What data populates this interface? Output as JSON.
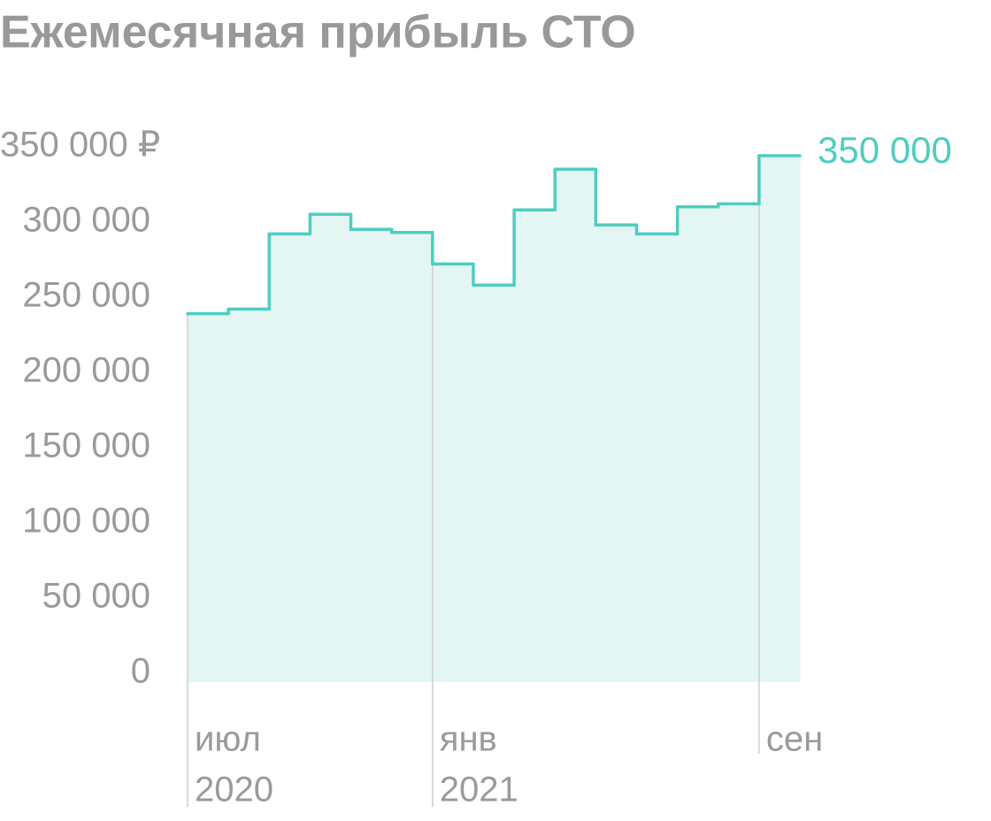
{
  "chart_data": {
    "type": "step",
    "title": "Ежемесячная прибыль СТО",
    "categories": [
      "июл",
      null,
      null,
      null,
      null,
      null,
      "янв",
      null,
      null,
      null,
      null,
      null,
      null,
      null,
      "сен"
    ],
    "category_years": [
      "2020",
      null,
      null,
      null,
      null,
      null,
      "2021",
      null,
      null,
      null,
      null,
      null,
      null,
      null,
      null
    ],
    "values": [
      245000,
      248000,
      298000,
      311000,
      301000,
      299000,
      278000,
      264000,
      314000,
      341000,
      304000,
      298000,
      316000,
      318000,
      350000
    ],
    "value_labels": [
      null,
      null,
      null,
      null,
      null,
      null,
      null,
      null,
      null,
      null,
      null,
      null,
      null,
      null,
      "350 000"
    ],
    "color": "#4fcdc0",
    "fill_color": "#e3f6f3",
    "ylim": [
      0,
      350000
    ],
    "yticks": [
      0,
      {
        "value": 50000,
        "label": "50 000"
      },
      {
        "value": 100000,
        "label": "100 000"
      },
      {
        "value": 150000,
        "label": "150 000"
      },
      {
        "value": 200000,
        "label": "200 000"
      },
      {
        "value": 250000,
        "label": "250 000"
      },
      {
        "value": 300000,
        "label": "300 000"
      },
      {
        "value": 350000,
        "label": "350 000 ₽"
      }
    ]
  }
}
